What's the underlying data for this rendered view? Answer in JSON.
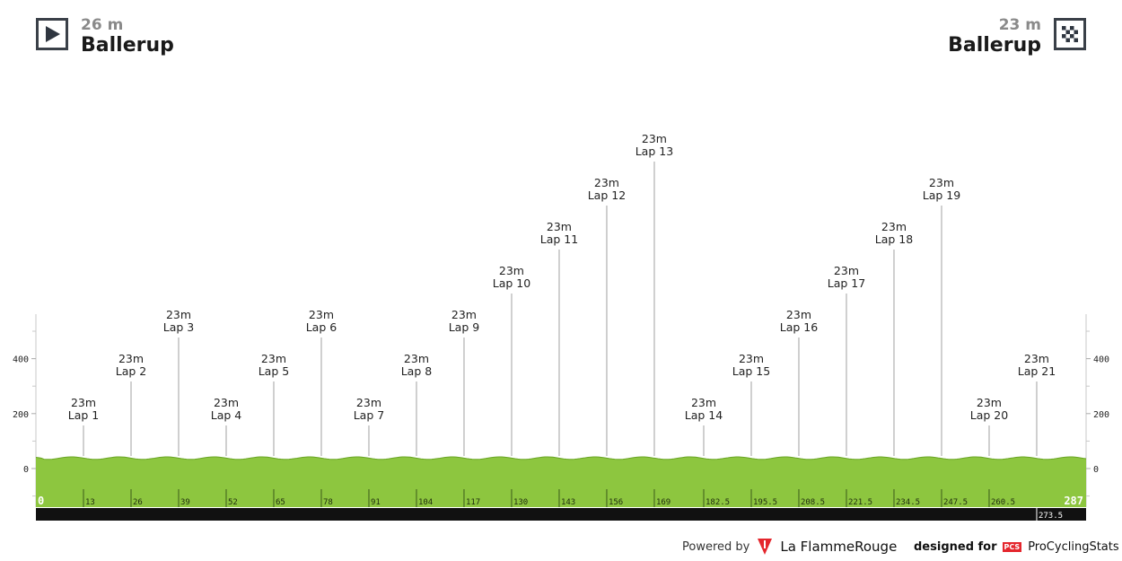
{
  "start": {
    "altitude": "26 m",
    "town": "Ballerup"
  },
  "finish": {
    "altitude": "23 m",
    "town": "Ballerup"
  },
  "icons": {
    "start": "play-icon",
    "finish": "checkered-flag-icon",
    "brand": "flamme-rouge-icon"
  },
  "footer": {
    "powered_by": "Powered by",
    "flamme_rouge": "La FlammeRouge",
    "designed_for": "designed for",
    "pcs_mark": "PCS",
    "procyclingstats": "ProCyclingStats"
  },
  "colors": {
    "profile_fill": "#8dc63f",
    "profile_top": "#6aa526",
    "marker_line": "#c0c0c0",
    "axis_bar": "#111111"
  },
  "chart_data": {
    "type": "area",
    "ylim": [
      -140,
      560
    ],
    "y_ticks": [
      0,
      200,
      400
    ],
    "x_range": [
      0,
      287
    ],
    "x_ticks": [
      "0",
      "13",
      "26",
      "39",
      "52",
      "65",
      "78",
      "91",
      "104",
      "117",
      "130",
      "143",
      "156",
      "169",
      "182.5",
      "195.5",
      "208.5",
      "221.5",
      "234.5",
      "247.5",
      "260.5",
      "287"
    ],
    "x_extra_tick": "273.5",
    "profile": [
      {
        "km": 0,
        "elev": 26
      },
      {
        "km": 13,
        "elev": 23
      },
      {
        "km": 26,
        "elev": 23
      },
      {
        "km": 39,
        "elev": 23
      },
      {
        "km": 52,
        "elev": 23
      },
      {
        "km": 65,
        "elev": 23
      },
      {
        "km": 78,
        "elev": 23
      },
      {
        "km": 91,
        "elev": 23
      },
      {
        "km": 104,
        "elev": 23
      },
      {
        "km": 117,
        "elev": 23
      },
      {
        "km": 130,
        "elev": 23
      },
      {
        "km": 143,
        "elev": 23
      },
      {
        "km": 156,
        "elev": 23
      },
      {
        "km": 169,
        "elev": 23
      },
      {
        "km": 182.5,
        "elev": 23
      },
      {
        "km": 195.5,
        "elev": 23
      },
      {
        "km": 208.5,
        "elev": 23
      },
      {
        "km": 221.5,
        "elev": 23
      },
      {
        "km": 234.5,
        "elev": 23
      },
      {
        "km": 247.5,
        "elev": 23
      },
      {
        "km": 260.5,
        "elev": 23
      },
      {
        "km": 273.5,
        "elev": 23
      },
      {
        "km": 287,
        "elev": 23
      }
    ],
    "markers": [
      {
        "km": 13,
        "altitude": "23m",
        "label": "Lap 1"
      },
      {
        "km": 26,
        "altitude": "23m",
        "label": "Lap 2"
      },
      {
        "km": 39,
        "altitude": "23m",
        "label": "Lap 3"
      },
      {
        "km": 52,
        "altitude": "23m",
        "label": "Lap 4"
      },
      {
        "km": 65,
        "altitude": "23m",
        "label": "Lap 5"
      },
      {
        "km": 78,
        "altitude": "23m",
        "label": "Lap 6"
      },
      {
        "km": 91,
        "altitude": "23m",
        "label": "Lap 7"
      },
      {
        "km": 104,
        "altitude": "23m",
        "label": "Lap 8"
      },
      {
        "km": 117,
        "altitude": "23m",
        "label": "Lap 9"
      },
      {
        "km": 130,
        "altitude": "23m",
        "label": "Lap 10"
      },
      {
        "km": 143,
        "altitude": "23m",
        "label": "Lap 11"
      },
      {
        "km": 156,
        "altitude": "23m",
        "label": "Lap 12"
      },
      {
        "km": 169,
        "altitude": "23m",
        "label": "Lap 13"
      },
      {
        "km": 182.5,
        "altitude": "23m",
        "label": "Lap 14"
      },
      {
        "km": 195.5,
        "altitude": "23m",
        "label": "Lap 15"
      },
      {
        "km": 208.5,
        "altitude": "23m",
        "label": "Lap 16"
      },
      {
        "km": 221.5,
        "altitude": "23m",
        "label": "Lap 17"
      },
      {
        "km": 234.5,
        "altitude": "23m",
        "label": "Lap 18"
      },
      {
        "km": 247.5,
        "altitude": "23m",
        "label": "Lap 19"
      },
      {
        "km": 260.5,
        "altitude": "23m",
        "label": "Lap 20"
      },
      {
        "km": 273.5,
        "altitude": "23m",
        "label": "Lap 21"
      }
    ]
  }
}
